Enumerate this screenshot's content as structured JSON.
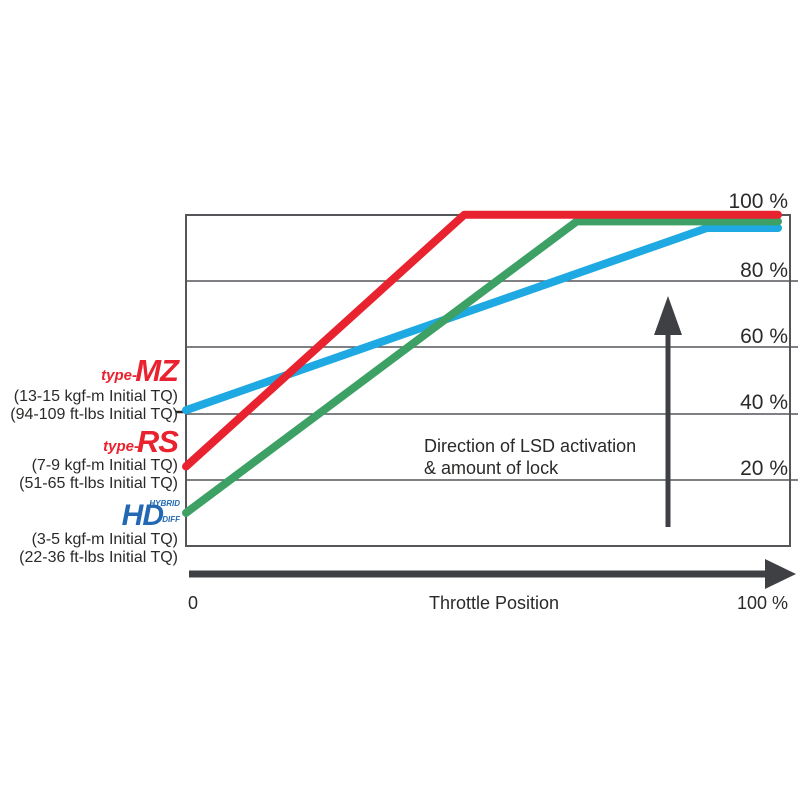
{
  "chart_data": {
    "type": "line",
    "title": "",
    "xlabel": "Throttle Position",
    "ylabel": "",
    "x_origin_label": "0",
    "x_max_label": "100 %",
    "y_tick_labels": [
      "100 %",
      "80 %",
      "60 %",
      "40 %",
      "20 %"
    ],
    "y_ticks_pct": [
      100,
      80,
      60,
      40,
      20
    ],
    "xlim": [
      0,
      100
    ],
    "ylim": [
      0,
      100
    ],
    "grid": true,
    "legend_position": "left-of-plot",
    "annotation_lines": [
      "Direction of LSD activation",
      "& amount of lock"
    ],
    "series": [
      {
        "name": "type-MZ",
        "color": "#1ea9e2",
        "x": [
          0,
          88,
          100
        ],
        "y": [
          41,
          96,
          96
        ]
      },
      {
        "name": "HD Hybrid Diff",
        "color": "#3da064",
        "x": [
          0,
          66,
          100
        ],
        "y": [
          10,
          98,
          98
        ]
      },
      {
        "name": "type-RS",
        "color": "#e8232f",
        "x": [
          0,
          47,
          100
        ],
        "y": [
          24,
          100,
          100
        ]
      }
    ]
  },
  "legend": {
    "items": [
      {
        "prefix": "type-",
        "brand": "MZ",
        "brand_color": "#e8232f",
        "spec1": "(13-15 kgf-m Initial TQ)",
        "spec2": "(94-109 ft-lbs Initial TQ)"
      },
      {
        "prefix": "type-",
        "brand": "RS",
        "brand_color": "#e8232f",
        "spec1": "(7-9 kgf-m Initial TQ)",
        "spec2": "(51-65 ft-lbs Initial TQ)"
      },
      {
        "brand": "HD",
        "sub_top": "HYBRID",
        "sub_bottom": "DIFF",
        "brand_color": "#2268b2",
        "spec1": "(3-5 kgf-m Initial TQ)",
        "spec2": "(22-36 ft-lbs Initial TQ)"
      }
    ]
  },
  "colors": {
    "axis_arrow": "#3f4043",
    "grid": "#55565a",
    "text": "#2b2a29"
  }
}
